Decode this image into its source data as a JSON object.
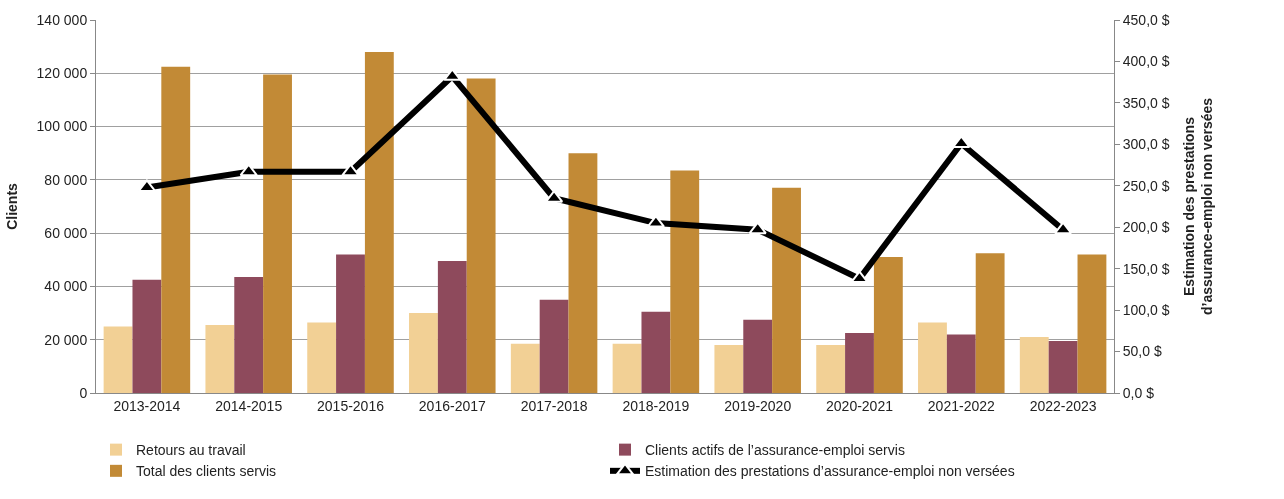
{
  "chart_data": {
    "type": "bar",
    "ylabel": "Clients",
    "y2label": "Estimation des prestations\nd’assurance-emploi non versées",
    "categories": [
      "2013-2014",
      "2014-2015",
      "2015-2016",
      "2016-2017",
      "2017-2018",
      "2018-2019",
      "2019-2020",
      "2020-2021",
      "2021-2022",
      "2022-2023"
    ],
    "series": [
      {
        "name": "Retours au travail",
        "color": "#f2d095",
        "values": [
          25000,
          25500,
          26500,
          30000,
          18500,
          18500,
          18000,
          18000,
          26500,
          21000
        ]
      },
      {
        "name": "Clients actifs de l’assurance-emploi servis",
        "color": "#8e4a5c",
        "values": [
          42500,
          43500,
          52000,
          49500,
          35000,
          30500,
          27500,
          22500,
          22000,
          19500
        ]
      },
      {
        "name": "Total des clients servis",
        "color": "#c28a36",
        "values": [
          122500,
          119500,
          128000,
          118000,
          90000,
          83500,
          77000,
          51000,
          52500,
          52000
        ]
      },
      {
        "name": "Estimation des prestations d’assurance-emploi non versées",
        "type": "line",
        "axis": "y2",
        "color": "#000000",
        "marker": "triangle",
        "values": [
          248,
          267,
          267,
          382,
          235,
          205,
          197,
          138,
          301,
          197
        ]
      }
    ],
    "ylim": [
      0,
      140000
    ],
    "yticks": [
      0,
      {
        "value": 20000,
        "label": "20 000"
      },
      {
        "value": 40000,
        "label": "40 000"
      },
      {
        "value": 60000,
        "label": "60 000"
      },
      {
        "value": 80000,
        "label": "80 000"
      },
      {
        "value": 100000,
        "label": "100 000"
      },
      {
        "value": 120000,
        "label": "120 000"
      },
      {
        "value": 140000,
        "label": "140 000"
      }
    ],
    "y2lim": [
      0,
      450
    ],
    "y2ticks": [
      {
        "value": 0,
        "label": "0,0 $"
      },
      {
        "value": 50,
        "label": "50,0 $"
      },
      {
        "value": 100,
        "label": "100,0 $"
      },
      {
        "value": 150,
        "label": "150,0 $"
      },
      {
        "value": 200,
        "label": "200,0 $"
      },
      {
        "value": 250,
        "label": "250,0 $"
      },
      {
        "value": 300,
        "label": "300,0 $"
      },
      {
        "value": 350,
        "label": "350,0 $"
      },
      {
        "value": 400,
        "label": "400,0 $"
      },
      {
        "value": 450,
        "label": "450,0 $"
      }
    ],
    "grid": "y",
    "legend": "bottom"
  }
}
